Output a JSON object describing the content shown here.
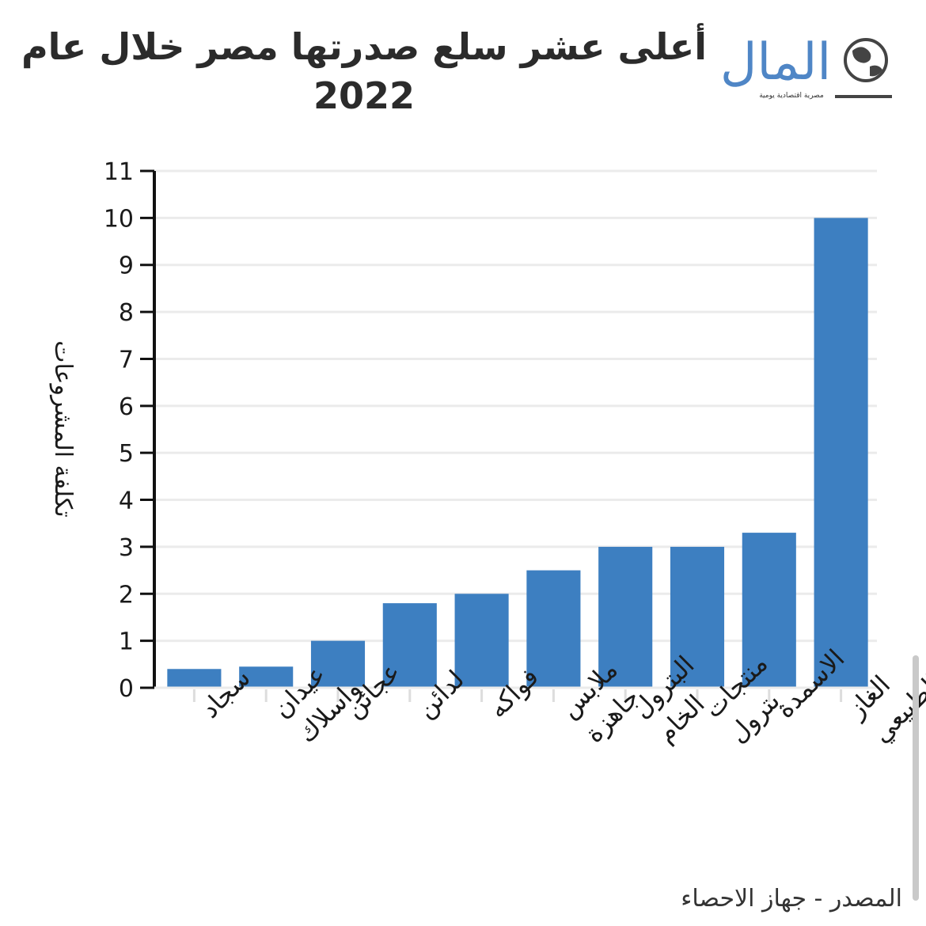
{
  "header": {
    "title": "أعلى عشر سلع صدرتها مصر خلال عام 2022"
  },
  "logo": {
    "name": "المال",
    "tagline": "مصرية اقتصادية يومية",
    "icon": "globe-icon",
    "color": "#4f86c6"
  },
  "chart_data": {
    "type": "bar",
    "title": "أعلى عشر سلع صدرتها مصر خلال عام 2022",
    "ylabel": "تكلفة المشروعات",
    "xlabel": "",
    "ylim": [
      0,
      11
    ],
    "yticks": [
      0,
      1,
      2,
      3,
      4,
      5,
      6,
      7,
      8,
      9,
      10,
      11
    ],
    "grid": true,
    "bar_color": "#3d7fc1",
    "categories": [
      "سجاد",
      "عيدان واسلاك",
      "عجائن",
      "لدائن",
      "فواكه",
      "ملابس جاهزة",
      "البترول الخام",
      "منتجات بترول",
      "الاسمدة",
      "الغاز الطبيعي"
    ],
    "values": [
      0.4,
      0.45,
      1.0,
      1.8,
      2.0,
      2.5,
      3.0,
      3.0,
      3.3,
      10.0
    ]
  },
  "footer": {
    "source": "المصدر - جهاز الاحصاء"
  }
}
